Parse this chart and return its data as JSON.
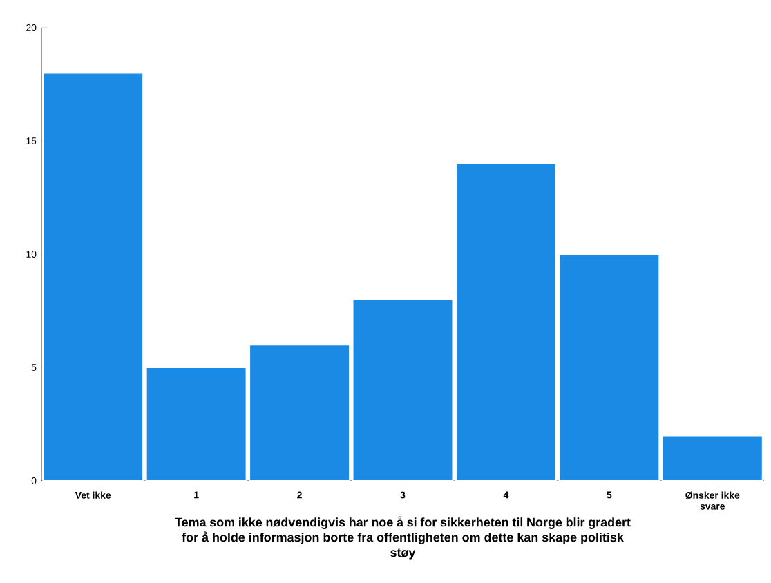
{
  "chart_data": {
    "type": "bar",
    "xlabel": "Tema som ikke nødvendigvis har noe å si for sikkerheten til Norge blir gradert for å holde informasjon borte fra offentligheten om dette kan skape politisk støy",
    "categories": [
      "Vet ikke",
      "1",
      "2",
      "3",
      "4",
      "5",
      "Ønsker ikke svare"
    ],
    "values": [
      18,
      5,
      6,
      8,
      14,
      10,
      2
    ],
    "color": "#1a8ae5",
    "ylim": [
      0,
      20
    ],
    "yticks": [
      0,
      5,
      10,
      15,
      20
    ]
  }
}
